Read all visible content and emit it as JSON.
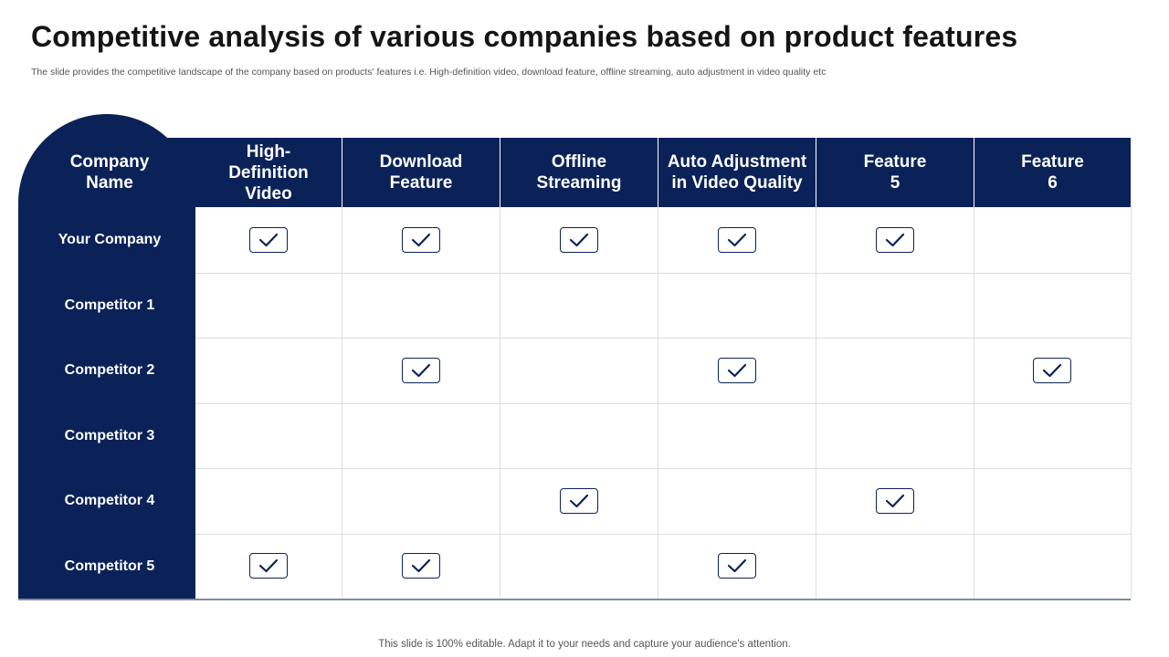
{
  "title": "Competitive analysis of various companies based on product features",
  "subtitle": "The slide provides the competitive landscape of the company based on products' features i.e. High-definition video, download feature, offline streaming, auto adjustment in video quality etc",
  "footer": "This slide is 100% editable. Adapt it to your needs and capture your audience's attention.",
  "table": {
    "company_header": [
      "Company",
      "Name"
    ],
    "feature_headers": [
      [
        "High-",
        "Definition",
        "Video"
      ],
      [
        "Download",
        "Feature"
      ],
      [
        "Offline",
        "Streaming"
      ],
      [
        "Auto Adjustment",
        "in Video Quality"
      ],
      [
        "Feature",
        "5"
      ],
      [
        "Feature",
        "6"
      ]
    ],
    "rows": [
      {
        "name": "Your Company",
        "checks": [
          true,
          true,
          true,
          true,
          true,
          false
        ]
      },
      {
        "name": "Competitor 1",
        "checks": [
          false,
          false,
          false,
          false,
          false,
          false
        ]
      },
      {
        "name": "Competitor 2",
        "checks": [
          false,
          true,
          false,
          true,
          false,
          true
        ]
      },
      {
        "name": "Competitor 3",
        "checks": [
          false,
          false,
          false,
          false,
          false,
          false
        ]
      },
      {
        "name": "Competitor 4",
        "checks": [
          false,
          false,
          true,
          false,
          true,
          false
        ]
      },
      {
        "name": "Competitor 5",
        "checks": [
          true,
          true,
          false,
          true,
          false,
          false
        ]
      }
    ]
  },
  "icons": {
    "check": "checkmark-box-icon"
  },
  "colors": {
    "navy": "#0b2259",
    "grid": "#d9dde5"
  }
}
